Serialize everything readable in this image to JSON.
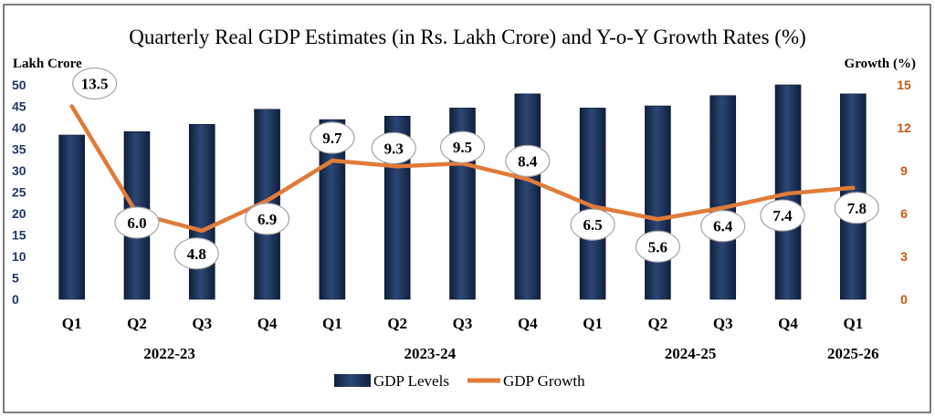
{
  "chart_data": {
    "type": "bar",
    "title": "Quarterly Real GDP Estimates (in Rs. Lakh Crore) and Y-o-Y Growth Rates (%)",
    "ylabel_left": "Lakh Crore",
    "ylabel_right": "Growth (%)",
    "ylim_left": [
      0,
      50
    ],
    "ylim_right": [
      0,
      15
    ],
    "yticks_left": [
      0,
      5,
      10,
      15,
      20,
      25,
      30,
      35,
      40,
      45,
      50
    ],
    "yticks_right": [
      0,
      3,
      6,
      9,
      12,
      15
    ],
    "categories": [
      "Q1",
      "Q2",
      "Q3",
      "Q4",
      "Q1",
      "Q2",
      "Q3",
      "Q4",
      "Q1",
      "Q2",
      "Q3",
      "Q4",
      "Q1"
    ],
    "groups": [
      {
        "label": "2022-23",
        "start": 0,
        "end": 3
      },
      {
        "label": "2023-24",
        "start": 4,
        "end": 7
      },
      {
        "label": "2024-25",
        "start": 8,
        "end": 11
      },
      {
        "label": "2025-26",
        "start": 12,
        "end": 12
      }
    ],
    "series": [
      {
        "name": "GDP Levels",
        "type": "bar",
        "axis": "left",
        "color": "#1f3864",
        "values": [
          38.3,
          39.1,
          40.8,
          44.3,
          41.9,
          42.7,
          44.6,
          47.9,
          44.6,
          45.1,
          47.5,
          51.3,
          47.9
        ]
      },
      {
        "name": "GDP Growth",
        "type": "line",
        "axis": "right",
        "color": "#e07b39",
        "values": [
          13.5,
          6.0,
          4.8,
          6.9,
          9.7,
          9.3,
          9.5,
          8.4,
          6.5,
          5.6,
          6.4,
          7.4,
          7.8
        ],
        "labels": [
          "13.5",
          "6.0",
          "4.8",
          "6.9",
          "9.7",
          "9.3",
          "9.5",
          "8.4",
          "6.5",
          "5.6",
          "6.4",
          "7.4",
          "7.8"
        ]
      }
    ],
    "legend": {
      "position": "bottom"
    },
    "grid": false
  }
}
